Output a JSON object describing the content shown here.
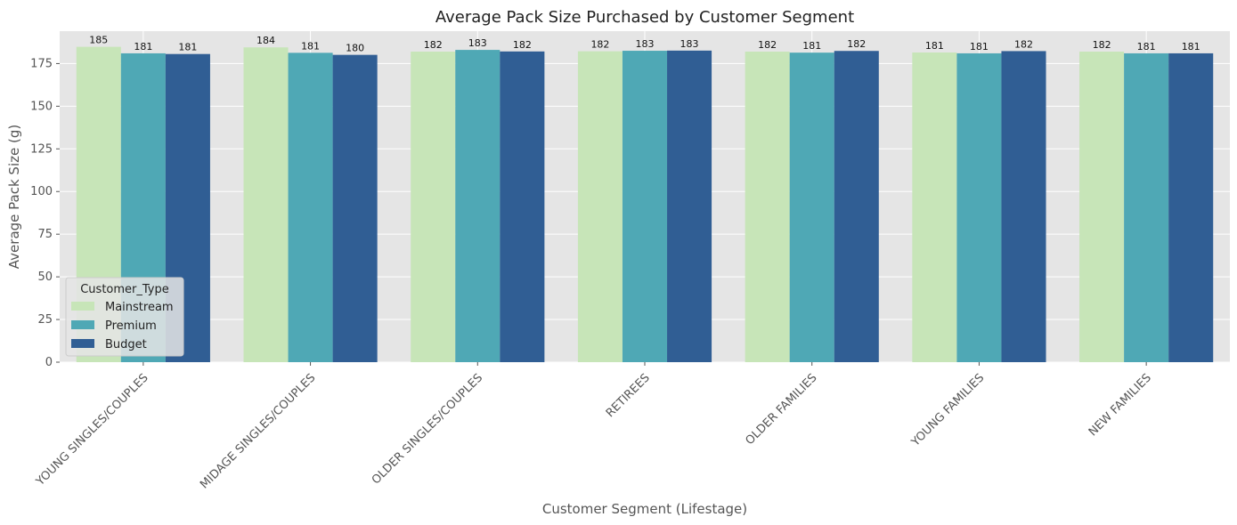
{
  "chart_data": {
    "type": "bar",
    "title": "Average Pack Size Purchased by Customer Segment",
    "xlabel": "Customer Segment (Lifestage)",
    "ylabel": "Average Pack Size (g)",
    "ylim": [
      0,
      194
    ],
    "yticks": [
      0,
      25,
      50,
      75,
      100,
      125,
      150,
      175
    ],
    "grid": true,
    "legend_position": "lower-left",
    "legend_title": "Customer_Type",
    "categories": [
      "YOUNG SINGLES/COUPLES",
      "MIDAGE SINGLES/COUPLES",
      "OLDER SINGLES/COUPLES",
      "RETIREES",
      "OLDER FAMILIES",
      "YOUNG FAMILIES",
      "NEW FAMILIES"
    ],
    "series": [
      {
        "name": "Mainstream",
        "color": "#c7e5b8",
        "values": [
          184.8,
          184.5,
          182.0,
          182.2,
          182.0,
          181.5,
          182.0
        ],
        "labels": [
          "185",
          "184",
          "182",
          "182",
          "182",
          "181",
          "182"
        ]
      },
      {
        "name": "Premium",
        "color": "#4fa8b5",
        "values": [
          181.0,
          181.3,
          183.0,
          182.5,
          181.4,
          181.0,
          181.0
        ],
        "labels": [
          "181",
          "181",
          "183",
          "183",
          "181",
          "181",
          "181"
        ]
      },
      {
        "name": "Budget",
        "color": "#305e94",
        "values": [
          180.6,
          180.1,
          182.1,
          182.6,
          182.4,
          182.3,
          181.0
        ],
        "labels": [
          "181",
          "180",
          "182",
          "183",
          "182",
          "182",
          "181"
        ]
      }
    ]
  }
}
